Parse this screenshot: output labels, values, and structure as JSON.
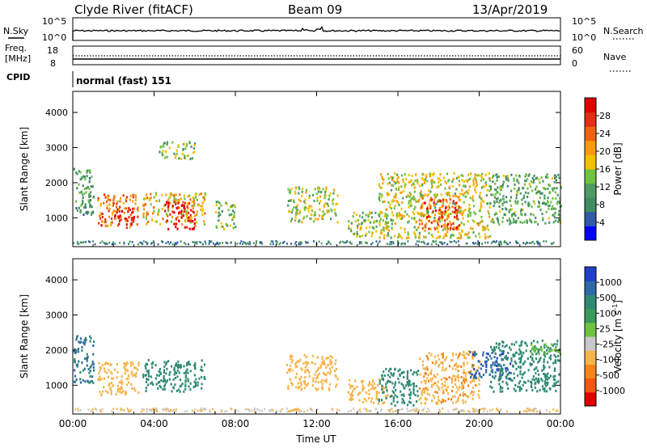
{
  "header": {
    "station": "Clyde River (fitACF)",
    "beam": "Beam 09",
    "date": "13/Apr/2019"
  },
  "top_panels": {
    "nsky_label": "N.Sky",
    "nsky_ticks": [
      "10^5",
      "10^0"
    ],
    "nsearch_label": "N.Search",
    "nsearch_ticks": [
      "10^5",
      "10^0"
    ],
    "freq_label_line1": "Freq.",
    "freq_label_line2": "[MHz]",
    "freq_ticks": [
      "18",
      "8"
    ],
    "nave_label": "Nave",
    "nave_ticks": [
      "60",
      "0"
    ],
    "cpid_label": "CPID",
    "cpid_value": "normal (fast) 151"
  },
  "colors": {
    "power": [
      "#0000ff",
      "#2e5aa8",
      "#3f8b62",
      "#4e9a63",
      "#6ec23f",
      "#f2c200",
      "#f79a10",
      "#ee6412",
      "#e52c14",
      "#e00000"
    ],
    "velocity": [
      "#e00000",
      "#f25812",
      "#f5841a",
      "#f7b44a",
      "#c8c8c8",
      "#6ec23f",
      "#3a9a5a",
      "#2f8a72",
      "#2e6aa8",
      "#2040c8"
    ]
  },
  "chart_data": [
    {
      "type": "heatmap",
      "title": "",
      "xlabel": "Time UT",
      "ylabel": "Slant Range [km]",
      "x_ticks": [
        "00:00",
        "04:00",
        "08:00",
        "12:00",
        "16:00",
        "20:00",
        "00:00"
      ],
      "x_range_hours": [
        0,
        24
      ],
      "y_ticks": [
        1000,
        2000,
        3000,
        4000
      ],
      "ylim": [
        180,
        4600
      ],
      "colorbar": {
        "label": "Power [dB]",
        "ticks": [
          "4",
          "8",
          "12",
          "16",
          "20",
          "24",
          "28"
        ],
        "range": [
          0,
          30
        ]
      },
      "regions": [
        {
          "t0": 0.0,
          "t1": 1.0,
          "r0": 1100,
          "r1": 2450,
          "v": 10
        },
        {
          "t0": 1.2,
          "t1": 3.2,
          "r0": 750,
          "r1": 1700,
          "v": 22
        },
        {
          "t0": 2.0,
          "t1": 3.0,
          "r0": 800,
          "r1": 1300,
          "v": 28
        },
        {
          "t0": 3.4,
          "t1": 6.5,
          "r0": 850,
          "r1": 1750,
          "v": 18
        },
        {
          "t0": 4.5,
          "t1": 6.0,
          "r0": 700,
          "r1": 1500,
          "v": 28
        },
        {
          "t0": 7.0,
          "t1": 8.0,
          "r0": 700,
          "r1": 1500,
          "v": 12
        },
        {
          "t0": 10.5,
          "t1": 13.0,
          "r0": 900,
          "r1": 1900,
          "v": 14
        },
        {
          "t0": 13.5,
          "t1": 15.5,
          "r0": 500,
          "r1": 1200,
          "v": 14
        },
        {
          "t0": 15.0,
          "t1": 20.5,
          "r0": 450,
          "r1": 2300,
          "v": 16
        },
        {
          "t0": 17.0,
          "t1": 19.0,
          "r0": 700,
          "r1": 1600,
          "v": 24
        },
        {
          "t0": 20.5,
          "t1": 24.0,
          "r0": 850,
          "r1": 2300,
          "v": 11
        },
        {
          "t0": 4.2,
          "t1": 6.0,
          "r0": 2700,
          "r1": 3200,
          "v": 12
        }
      ]
    },
    {
      "type": "heatmap",
      "title": "",
      "xlabel": "Time UT",
      "ylabel": "Slant Range [km]",
      "x_ticks": [
        "00:00",
        "04:00",
        "08:00",
        "12:00",
        "16:00",
        "20:00",
        "00:00"
      ],
      "x_range_hours": [
        0,
        24
      ],
      "y_ticks": [
        1000,
        2000,
        3000,
        4000
      ],
      "ylim": [
        180,
        4600
      ],
      "colorbar": {
        "label": "Velocity [m s^-1]",
        "ticks": [
          "-1000",
          "-500",
          "-100",
          "-25",
          "25",
          "100",
          "500",
          "1000"
        ]
      },
      "regions": [
        {
          "t0": 0.0,
          "t1": 1.0,
          "r0": 1100,
          "r1": 2450,
          "v": 500
        },
        {
          "t0": 1.2,
          "t1": 3.2,
          "r0": 750,
          "r1": 1700,
          "v": -300
        },
        {
          "t0": 3.4,
          "t1": 6.5,
          "r0": 850,
          "r1": 1750,
          "v": 200
        },
        {
          "t0": 10.5,
          "t1": 13.0,
          "r0": 900,
          "r1": 1900,
          "v": -300
        },
        {
          "t0": 13.5,
          "t1": 15.5,
          "r0": 500,
          "r1": 1200,
          "v": -300
        },
        {
          "t0": 15.0,
          "t1": 17.0,
          "r0": 450,
          "r1": 1500,
          "v": 300
        },
        {
          "t0": 17.0,
          "t1": 20.0,
          "r0": 500,
          "r1": 2000,
          "v": -400
        },
        {
          "t0": 19.5,
          "t1": 21.5,
          "r0": 1200,
          "r1": 2000,
          "v": 800
        },
        {
          "t0": 20.5,
          "t1": 24.0,
          "r0": 850,
          "r1": 2300,
          "v": 300
        },
        {
          "t0": 22.5,
          "t1": 24.0,
          "r0": 1900,
          "r1": 2200,
          "v": 0
        }
      ]
    }
  ]
}
